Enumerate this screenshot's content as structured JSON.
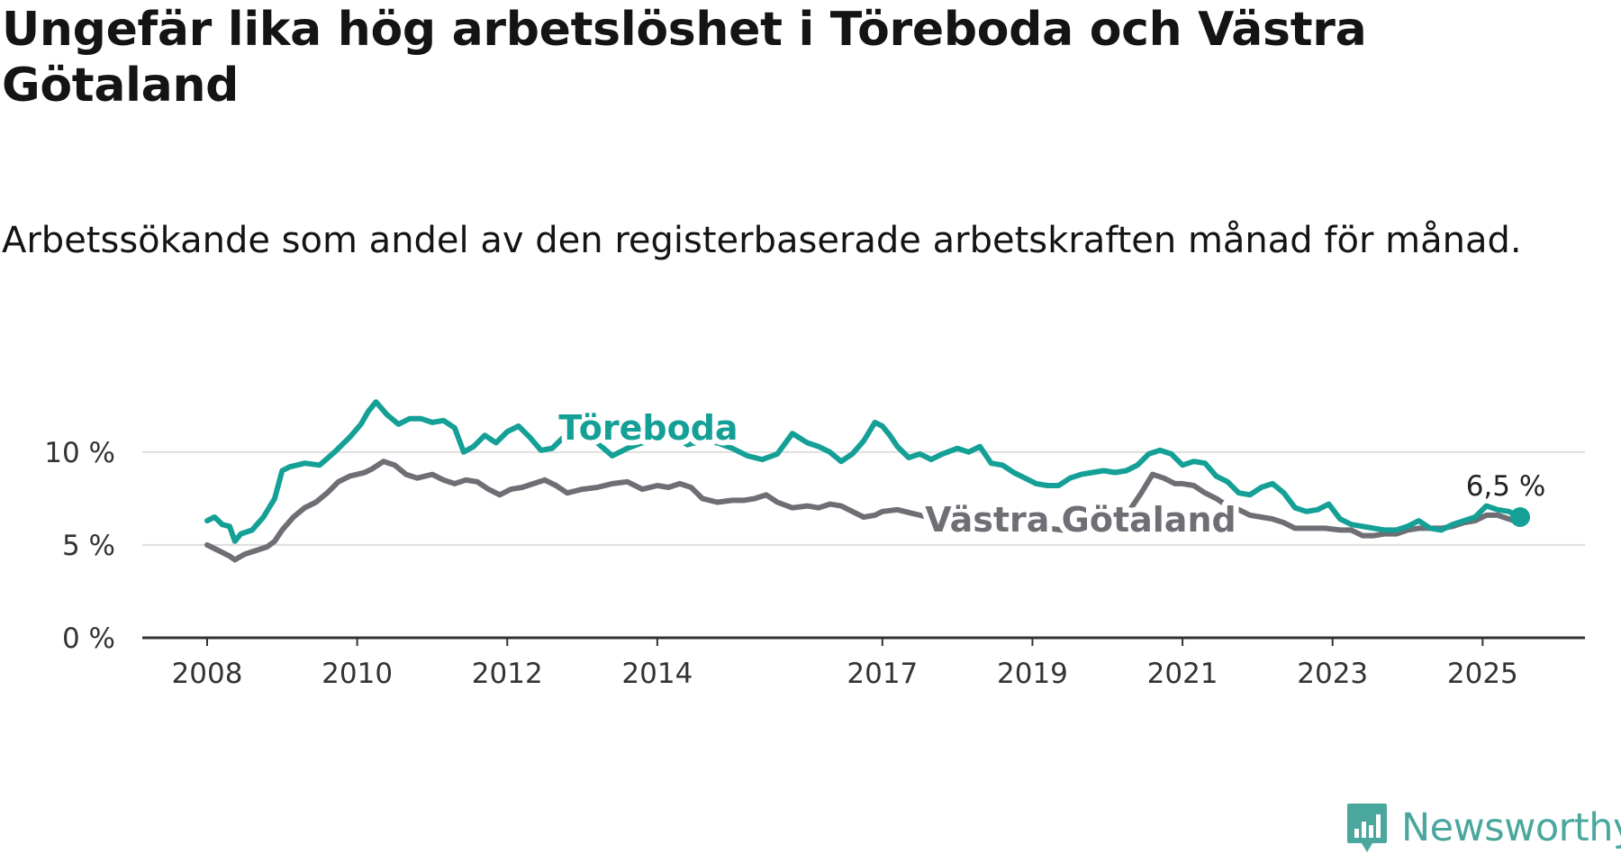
{
  "title": "Ungefär lika hög arbetslöshet i Töreboda och Västra Götaland",
  "subtitle": "Arbetssökande som andel av den registerbaserade arbetskraften månad för månad.",
  "brand": {
    "name": "Newsworthy",
    "color": "#4aa79e",
    "icon": "bar-chart-speech-bubble-icon"
  },
  "chart_data": {
    "type": "line",
    "x_unit": "year",
    "ylim": [
      0,
      13
    ],
    "yticks": [
      0,
      5,
      10
    ],
    "ytick_labels": [
      "0 %",
      "5 %",
      "10 %"
    ],
    "xticks": [
      2008,
      2010,
      2012,
      2014,
      2017,
      2019,
      2021,
      2023,
      2025
    ],
    "xtick_labels": [
      "2008",
      "2010",
      "2012",
      "2014",
      "2017",
      "2019",
      "2021",
      "2023",
      "2025"
    ],
    "grid": true,
    "legend": "inline labels",
    "series": [
      {
        "name": "Töreboda",
        "color": "#14a096",
        "x": [
          2008.0,
          2008.1,
          2008.2,
          2008.3,
          2008.37,
          2008.45,
          2008.6,
          2008.75,
          2008.9,
          2009.0,
          2009.1,
          2009.3,
          2009.5,
          2009.7,
          2009.9,
          2010.05,
          2010.15,
          2010.25,
          2010.4,
          2010.55,
          2010.7,
          2010.85,
          2011.0,
          2011.15,
          2011.3,
          2011.42,
          2011.55,
          2011.7,
          2011.85,
          2012.0,
          2012.15,
          2012.3,
          2012.45,
          2012.6,
          2012.75,
          2012.9,
          2013.05,
          2013.2,
          2013.4,
          2013.6,
          2013.8,
          2014.0,
          2014.2,
          2014.4,
          2014.6,
          2014.8,
          2015.0,
          2015.2,
          2015.4,
          2015.6,
          2015.8,
          2016.0,
          2016.15,
          2016.3,
          2016.45,
          2016.6,
          2016.75,
          2016.9,
          2017.0,
          2017.1,
          2017.2,
          2017.35,
          2017.5,
          2017.65,
          2017.8,
          2018.0,
          2018.15,
          2018.3,
          2018.45,
          2018.6,
          2018.75,
          2018.9,
          2019.05,
          2019.2,
          2019.35,
          2019.5,
          2019.65,
          2019.8,
          2019.95,
          2020.1,
          2020.25,
          2020.4,
          2020.55,
          2020.7,
          2020.85,
          2021.0,
          2021.15,
          2021.3,
          2021.45,
          2021.6,
          2021.75,
          2021.9,
          2022.05,
          2022.2,
          2022.35,
          2022.5,
          2022.65,
          2022.8,
          2022.95,
          2023.1,
          2023.25,
          2023.4,
          2023.55,
          2023.7,
          2023.85,
          2024.0,
          2024.15,
          2024.3,
          2024.45,
          2024.6,
          2024.75,
          2024.9,
          2025.05,
          2025.2,
          2025.35,
          2025.5
        ],
        "y": [
          6.3,
          6.5,
          6.1,
          6.0,
          5.2,
          5.6,
          5.8,
          6.5,
          7.5,
          9.0,
          9.2,
          9.4,
          9.3,
          10.0,
          10.8,
          11.5,
          12.2,
          12.7,
          12.0,
          11.5,
          11.8,
          11.8,
          11.6,
          11.7,
          11.3,
          10.0,
          10.3,
          10.9,
          10.5,
          11.1,
          11.4,
          10.8,
          10.1,
          10.2,
          10.8,
          11.3,
          11.0,
          10.5,
          9.8,
          10.2,
          10.5,
          10.6,
          10.9,
          10.4,
          10.6,
          10.5,
          10.2,
          9.8,
          9.6,
          9.9,
          11.0,
          10.5,
          10.3,
          10.0,
          9.5,
          9.9,
          10.6,
          11.6,
          11.4,
          10.9,
          10.3,
          9.7,
          9.9,
          9.6,
          9.9,
          10.2,
          10.0,
          10.3,
          9.4,
          9.3,
          8.9,
          8.6,
          8.3,
          8.2,
          8.2,
          8.6,
          8.8,
          8.9,
          9.0,
          8.9,
          9.0,
          9.3,
          9.9,
          10.1,
          9.9,
          9.3,
          9.5,
          9.4,
          8.7,
          8.4,
          7.8,
          7.7,
          8.1,
          8.3,
          7.8,
          7.0,
          6.8,
          6.9,
          7.2,
          6.4,
          6.1,
          6.0,
          5.9,
          5.8,
          5.8,
          6.0,
          6.3,
          5.9,
          5.8,
          6.1,
          6.3,
          6.5,
          7.1,
          6.9,
          6.8,
          6.5
        ]
      },
      {
        "name": "Västra Götaland",
        "color": "#6f6e74",
        "x": [
          2008.0,
          2008.1,
          2008.2,
          2008.3,
          2008.37,
          2008.5,
          2008.65,
          2008.8,
          2008.9,
          2009.0,
          2009.15,
          2009.3,
          2009.45,
          2009.6,
          2009.75,
          2009.9,
          2010.0,
          2010.1,
          2010.2,
          2010.35,
          2010.5,
          2010.65,
          2010.8,
          2011.0,
          2011.15,
          2011.3,
          2011.45,
          2011.6,
          2011.75,
          2011.9,
          2012.05,
          2012.2,
          2012.35,
          2012.5,
          2012.65,
          2012.8,
          2013.0,
          2013.2,
          2013.4,
          2013.6,
          2013.8,
          2014.0,
          2014.15,
          2014.3,
          2014.45,
          2014.6,
          2014.8,
          2015.0,
          2015.15,
          2015.3,
          2015.45,
          2015.6,
          2015.8,
          2016.0,
          2016.15,
          2016.3,
          2016.45,
          2016.6,
          2016.75,
          2016.9,
          2017.0,
          2017.2,
          2017.4,
          2017.6,
          2017.8,
          2018.0,
          2018.2,
          2018.4,
          2018.6,
          2018.8,
          2019.0,
          2019.2,
          2019.4,
          2019.6,
          2019.8,
          2020.0,
          2020.15,
          2020.3,
          2020.45,
          2020.6,
          2020.75,
          2020.9,
          2021.0,
          2021.15,
          2021.3,
          2021.45,
          2021.6,
          2021.75,
          2021.9,
          2022.05,
          2022.2,
          2022.35,
          2022.5,
          2022.7,
          2022.9,
          2023.1,
          2023.25,
          2023.4,
          2023.55,
          2023.7,
          2023.85,
          2024.0,
          2024.15,
          2024.3,
          2024.45,
          2024.6,
          2024.75,
          2024.9,
          2025.05,
          2025.2,
          2025.35,
          2025.5
        ],
        "y": [
          5.0,
          4.8,
          4.6,
          4.4,
          4.2,
          4.5,
          4.7,
          4.9,
          5.2,
          5.8,
          6.5,
          7.0,
          7.3,
          7.8,
          8.4,
          8.7,
          8.8,
          8.9,
          9.1,
          9.5,
          9.3,
          8.8,
          8.6,
          8.8,
          8.5,
          8.3,
          8.5,
          8.4,
          8.0,
          7.7,
          8.0,
          8.1,
          8.3,
          8.5,
          8.2,
          7.8,
          8.0,
          8.1,
          8.3,
          8.4,
          8.0,
          8.2,
          8.1,
          8.3,
          8.1,
          7.5,
          7.3,
          7.4,
          7.4,
          7.5,
          7.7,
          7.3,
          7.0,
          7.1,
          7.0,
          7.2,
          7.1,
          6.8,
          6.5,
          6.6,
          6.8,
          6.9,
          6.7,
          6.5,
          6.5,
          6.8,
          6.7,
          6.6,
          6.3,
          6.2,
          6.1,
          5.9,
          5.8,
          5.8,
          5.9,
          6.0,
          6.3,
          6.9,
          7.8,
          8.8,
          8.6,
          8.3,
          8.3,
          8.2,
          7.8,
          7.5,
          7.1,
          6.9,
          6.6,
          6.5,
          6.4,
          6.2,
          5.9,
          5.9,
          5.9,
          5.8,
          5.8,
          5.5,
          5.5,
          5.6,
          5.6,
          5.8,
          5.9,
          5.9,
          5.9,
          6.0,
          6.2,
          6.3,
          6.6,
          6.6,
          6.4,
          6.2
        ]
      }
    ],
    "annotations": [
      {
        "text": "6,5 %",
        "series": "Töreboda",
        "x": 2025.5,
        "y": 6.5
      }
    ]
  }
}
